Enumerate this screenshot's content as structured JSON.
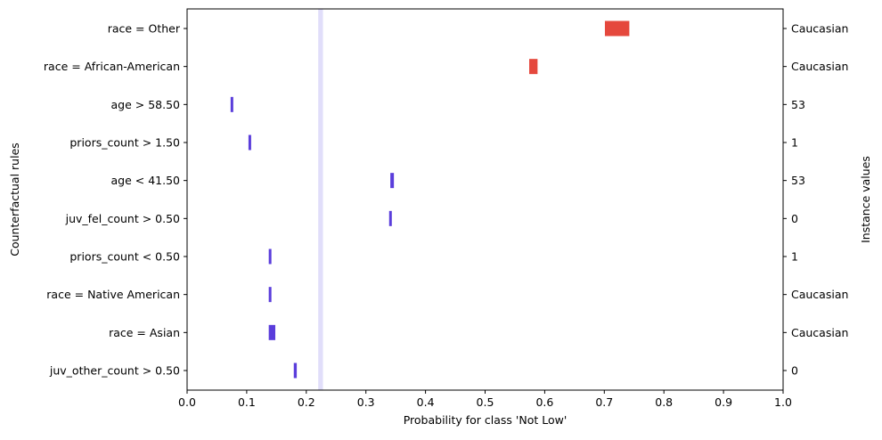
{
  "chart_data": {
    "type": "interval",
    "xlabel": "Probability for class 'Not Low'",
    "ylabel": "Counterfactual rules",
    "ylabel_right": "Instance values",
    "xlim": [
      0.0,
      1.0
    ],
    "xticks": [
      "0.0",
      "0.1",
      "0.2",
      "0.3",
      "0.4",
      "0.5",
      "0.6",
      "0.7",
      "0.8",
      "0.9",
      "1.0"
    ],
    "reference_band": {
      "low": 0.22,
      "high": 0.228,
      "color": "#e1defa"
    },
    "colors": {
      "positive": "#e5483d",
      "negative": "#5a3ddb"
    },
    "rules": [
      {
        "label": "race = Other",
        "instance": "Caucasian",
        "low": 0.701,
        "high": 0.742,
        "color": "#e5483d"
      },
      {
        "label": "race = African-American",
        "instance": "Caucasian",
        "low": 0.574,
        "high": 0.588,
        "color": "#e5483d"
      },
      {
        "label": "age > 58.50",
        "instance": "53",
        "low": 0.073,
        "high": 0.076,
        "color": "#5a3ddb"
      },
      {
        "label": "priors_count > 1.50",
        "instance": "1",
        "low": 0.103,
        "high": 0.106,
        "color": "#5a3ddb"
      },
      {
        "label": "age < 41.50",
        "instance": "53",
        "low": 0.341,
        "high": 0.347,
        "color": "#5a3ddb"
      },
      {
        "label": "juv_fel_count > 0.50",
        "instance": "0",
        "low": 0.339,
        "high": 0.343,
        "color": "#5a3ddb"
      },
      {
        "label": "priors_count < 0.50",
        "instance": "1",
        "low": 0.137,
        "high": 0.14,
        "color": "#5a3ddb"
      },
      {
        "label": "race = Native American",
        "instance": "Caucasian",
        "low": 0.137,
        "high": 0.14,
        "color": "#5a3ddb"
      },
      {
        "label": "race = Asian",
        "instance": "Caucasian",
        "low": 0.137,
        "high": 0.148,
        "color": "#5a3ddb"
      },
      {
        "label": "juv_other_count > 0.50",
        "instance": "0",
        "low": 0.179,
        "high": 0.184,
        "color": "#5a3ddb"
      }
    ]
  }
}
